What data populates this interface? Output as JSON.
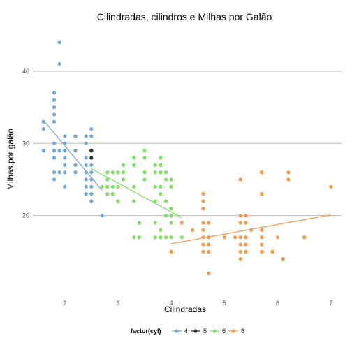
{
  "chart_data": {
    "type": "scatter",
    "title": "Cilindradas, cilindros e Milhas por Galão",
    "xlabel": "Cilindradas",
    "ylabel": "Milhas por galão",
    "xlim": [
      1.4,
      7.2
    ],
    "ylim": [
      10.2,
      45.5
    ],
    "xticks": [
      "2",
      "3",
      "4",
      "5",
      "6",
      "7"
    ],
    "yticks": [
      "20",
      "30",
      "40"
    ],
    "grid": "horizontal major lines only",
    "legend": {
      "title": "factor(cyl)",
      "position": "bottom"
    },
    "colors": {
      "4": "#6fa8dc",
      "5": "#333333",
      "6": "#7be35e",
      "8": "#f4994a",
      "grid": "#bdbdbd"
    },
    "series": [
      {
        "name": "4",
        "color": "#6fa8dc",
        "points": [
          [
            1.6,
            33
          ],
          [
            1.6,
            32
          ],
          [
            1.6,
            29
          ],
          [
            1.8,
            29
          ],
          [
            1.8,
            29
          ],
          [
            1.8,
            30
          ],
          [
            1.8,
            35
          ],
          [
            1.8,
            37
          ],
          [
            1.8,
            36
          ],
          [
            1.8,
            34
          ],
          [
            1.8,
            33
          ],
          [
            1.8,
            29
          ],
          [
            1.8,
            26
          ],
          [
            1.8,
            25
          ],
          [
            1.8,
            28
          ],
          [
            1.9,
            44
          ],
          [
            1.9,
            41
          ],
          [
            1.9,
            29
          ],
          [
            1.9,
            26
          ],
          [
            2.0,
            31
          ],
          [
            2.0,
            30
          ],
          [
            2.0,
            29
          ],
          [
            2.0,
            28
          ],
          [
            2.0,
            27
          ],
          [
            2.0,
            26
          ],
          [
            2.0,
            24
          ],
          [
            2.2,
            27
          ],
          [
            2.2,
            26
          ],
          [
            2.2,
            29
          ],
          [
            2.2,
            31
          ],
          [
            2.4,
            31
          ],
          [
            2.4,
            30
          ],
          [
            2.4,
            28
          ],
          [
            2.4,
            27
          ],
          [
            2.4,
            26
          ],
          [
            2.4,
            25
          ],
          [
            2.4,
            24
          ],
          [
            2.4,
            23
          ],
          [
            2.5,
            32
          ],
          [
            2.5,
            31
          ],
          [
            2.5,
            29
          ],
          [
            2.5,
            27
          ],
          [
            2.5,
            26
          ],
          [
            2.5,
            25
          ],
          [
            2.5,
            24
          ],
          [
            2.5,
            23
          ],
          [
            2.5,
            22
          ],
          [
            2.7,
            20
          ]
        ],
        "fit": [
          [
            1.6,
            33.2
          ],
          [
            2.7,
            23.5
          ]
        ]
      },
      {
        "name": "5",
        "color": "#333333",
        "points": [
          [
            2.5,
            29
          ],
          [
            2.5,
            28
          ],
          [
            2.5,
            29
          ]
        ],
        "fit": []
      },
      {
        "name": "6",
        "color": "#7be35e",
        "points": [
          [
            2.7,
            24
          ],
          [
            2.8,
            26
          ],
          [
            2.8,
            25
          ],
          [
            2.8,
            24
          ],
          [
            2.8,
            23
          ],
          [
            2.9,
            26
          ],
          [
            2.9,
            24
          ],
          [
            2.9,
            23
          ],
          [
            3.0,
            26
          ],
          [
            3.0,
            24
          ],
          [
            3.0,
            22
          ],
          [
            3.1,
            27
          ],
          [
            3.1,
            26
          ],
          [
            3.1,
            25
          ],
          [
            3.3,
            28
          ],
          [
            3.3,
            27
          ],
          [
            3.3,
            24
          ],
          [
            3.3,
            22
          ],
          [
            3.3,
            17
          ],
          [
            3.4,
            19
          ],
          [
            3.4,
            17
          ],
          [
            3.5,
            29
          ],
          [
            3.5,
            28
          ],
          [
            3.5,
            26
          ],
          [
            3.5,
            25
          ],
          [
            3.7,
            27
          ],
          [
            3.7,
            26
          ],
          [
            3.7,
            24
          ],
          [
            3.7,
            22
          ],
          [
            3.7,
            19
          ],
          [
            3.7,
            17
          ],
          [
            3.8,
            28
          ],
          [
            3.8,
            27
          ],
          [
            3.8,
            26
          ],
          [
            3.8,
            24
          ],
          [
            3.8,
            23
          ],
          [
            3.8,
            18
          ],
          [
            3.8,
            17
          ],
          [
            3.9,
            26
          ],
          [
            3.9,
            25
          ],
          [
            3.9,
            22
          ],
          [
            3.9,
            20
          ],
          [
            3.9,
            17
          ],
          [
            4.0,
            25
          ],
          [
            4.0,
            24
          ],
          [
            4.0,
            21
          ],
          [
            4.0,
            20
          ],
          [
            4.0,
            19
          ],
          [
            4.0,
            17
          ],
          [
            4.2,
            17
          ]
        ],
        "fit": [
          [
            2.5,
            26.5
          ],
          [
            4.2,
            19.7
          ]
        ]
      },
      {
        "name": "8",
        "color": "#f4994a",
        "points": [
          [
            4.0,
            15
          ],
          [
            4.2,
            19
          ],
          [
            4.4,
            18
          ],
          [
            4.6,
            23
          ],
          [
            4.6,
            22
          ],
          [
            4.6,
            21
          ],
          [
            4.6,
            19
          ],
          [
            4.6,
            18
          ],
          [
            4.6,
            17
          ],
          [
            4.6,
            16
          ],
          [
            4.6,
            15
          ],
          [
            4.7,
            19
          ],
          [
            4.7,
            17
          ],
          [
            4.7,
            16
          ],
          [
            4.7,
            15
          ],
          [
            4.7,
            12
          ],
          [
            4.7,
            12
          ],
          [
            5.0,
            17
          ],
          [
            5.2,
            17
          ],
          [
            5.3,
            25
          ],
          [
            5.3,
            20
          ],
          [
            5.3,
            19
          ],
          [
            5.3,
            17
          ],
          [
            5.3,
            15
          ],
          [
            5.3,
            14
          ],
          [
            5.3,
            16
          ],
          [
            5.4,
            20
          ],
          [
            5.4,
            19
          ],
          [
            5.4,
            17
          ],
          [
            5.4,
            16
          ],
          [
            5.4,
            15
          ],
          [
            5.5,
            18
          ],
          [
            5.7,
            26
          ],
          [
            5.7,
            23
          ],
          [
            5.7,
            18
          ],
          [
            5.7,
            17
          ],
          [
            5.7,
            16
          ],
          [
            5.7,
            15
          ],
          [
            5.9,
            15
          ],
          [
            6.0,
            17
          ],
          [
            6.1,
            14
          ],
          [
            6.2,
            26
          ],
          [
            6.2,
            25
          ],
          [
            6.5,
            17
          ],
          [
            7.0,
            24
          ]
        ],
        "fit": [
          [
            4.0,
            16.1
          ],
          [
            7.0,
            20.1
          ]
        ]
      }
    ]
  }
}
